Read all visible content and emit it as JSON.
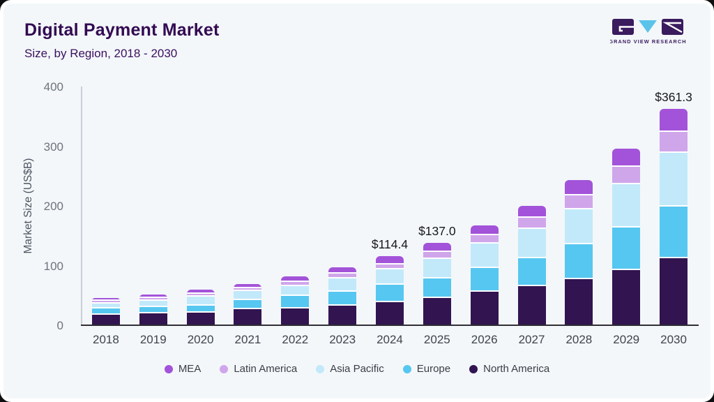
{
  "header": {
    "title": "Digital Payment Market",
    "subtitle": "Size, by Region, 2018 - 2030"
  },
  "logo": {
    "brand": "GRAND VIEW RESEARCH",
    "block_color": "#3a1b5e",
    "triangle_color": "#5bc3ea"
  },
  "chart_data": {
    "type": "bar",
    "variant": "stacked",
    "title": "Digital Payment Market",
    "subtitle": "Size, by Region, 2018 - 2030",
    "ylabel": "Market Size (US$B)",
    "ylim": [
      0,
      400
    ],
    "yticks": [
      0,
      100,
      200,
      300,
      400
    ],
    "grid": false,
    "legend_position": "bottom",
    "categories": [
      "2018",
      "2019",
      "2020",
      "2021",
      "2022",
      "2023",
      "2024",
      "2025",
      "2026",
      "2027",
      "2028",
      "2029",
      "2030"
    ],
    "series": [
      {
        "name": "North America",
        "color": "#321450",
        "values": [
          16.0,
          18.4,
          20.3,
          25.4,
          27.5,
          32.0,
          37.9,
          44.2,
          54.8,
          64.1,
          76.2,
          91.8,
          111.4
        ]
      },
      {
        "name": "Europe",
        "color": "#56c7f0",
        "values": [
          11.5,
          11.0,
          11.7,
          15.7,
          20.5,
          23.5,
          28.6,
          32.8,
          39.8,
          46.5,
          57.9,
          70.4,
          86.8
        ]
      },
      {
        "name": "Asia Pacific",
        "color": "#c2e9fa",
        "values": [
          7.5,
          10.0,
          14.5,
          15.0,
          16.5,
          21.5,
          26.2,
          33.6,
          41.5,
          49.7,
          59.4,
          73.2,
          89.2
        ]
      },
      {
        "name": "Latin America",
        "color": "#d0a6eb",
        "values": [
          4.5,
          4.8,
          5.0,
          5.0,
          7.0,
          8.0,
          8.3,
          11.4,
          13.2,
          18.4,
          22.7,
          28.5,
          35.2
        ]
      },
      {
        "name": "MEA",
        "color": "#a353d9",
        "values": [
          5.5,
          6.2,
          7.0,
          7.4,
          9.0,
          11.0,
          13.4,
          15.0,
          16.9,
          20.7,
          26.2,
          31.3,
          38.7
        ]
      }
    ],
    "legend_order": [
      "MEA",
      "Latin America",
      "Asia Pacific",
      "Europe",
      "North America"
    ],
    "bar_labels": {
      "2024": "$114.4",
      "2025": "$137.0",
      "2030": "$361.3"
    },
    "totals_labeled": {
      "2024": 114.4,
      "2025": 137.0,
      "2030": 361.3
    }
  }
}
